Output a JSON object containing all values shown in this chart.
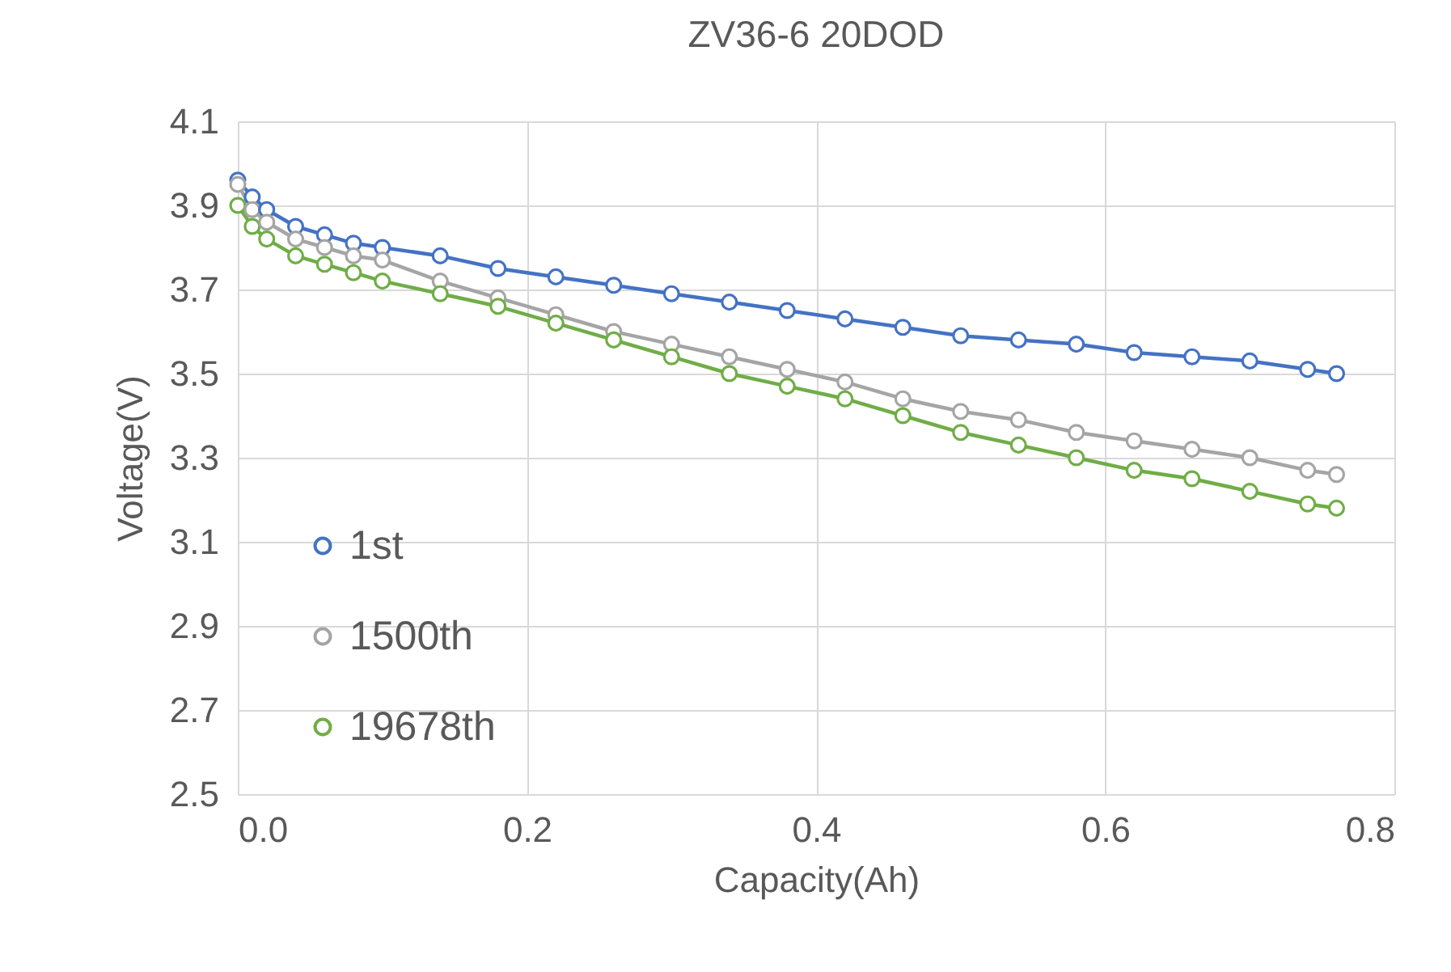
{
  "chart_data": {
    "type": "line",
    "title": "ZV36-6 20DOD",
    "xlabel": "Capacity(Ah)",
    "ylabel": "Voltage(V)",
    "x": [
      0,
      0.01,
      0.02,
      0.04,
      0.06,
      0.08,
      0.1,
      0.14,
      0.18,
      0.22,
      0.26,
      0.3,
      0.34,
      0.38,
      0.42,
      0.46,
      0.5,
      0.54,
      0.58,
      0.62,
      0.66,
      0.7,
      0.74,
      0.76
    ],
    "series": [
      {
        "name": "1st",
        "color": "#4472c4",
        "values": [
          3.96,
          3.92,
          3.89,
          3.85,
          3.83,
          3.81,
          3.8,
          3.78,
          3.75,
          3.73,
          3.71,
          3.69,
          3.67,
          3.65,
          3.63,
          3.61,
          3.59,
          3.58,
          3.57,
          3.55,
          3.54,
          3.53,
          3.51,
          3.5
        ]
      },
      {
        "name": "1500th",
        "color": "#a5a5a5",
        "values": [
          3.95,
          3.89,
          3.86,
          3.82,
          3.8,
          3.78,
          3.77,
          3.72,
          3.68,
          3.64,
          3.6,
          3.57,
          3.54,
          3.51,
          3.48,
          3.44,
          3.41,
          3.39,
          3.36,
          3.34,
          3.32,
          3.3,
          3.27,
          3.26
        ]
      },
      {
        "name": "19678th",
        "color": "#70ad47",
        "values": [
          3.9,
          3.85,
          3.82,
          3.78,
          3.76,
          3.74,
          3.72,
          3.69,
          3.66,
          3.62,
          3.58,
          3.54,
          3.5,
          3.47,
          3.44,
          3.4,
          3.36,
          3.33,
          3.3,
          3.27,
          3.25,
          3.22,
          3.19,
          3.18
        ]
      }
    ],
    "xlim": [
      0,
      0.8
    ],
    "xticks": [
      {
        "value": 0,
        "label": "0.0"
      },
      0.2,
      0.4,
      0.6,
      0.8
    ],
    "ylim": [
      2.5,
      4.1
    ],
    "yticks": [
      2.5,
      2.7,
      2.9,
      3.1,
      3.3,
      3.5,
      3.7,
      3.9,
      4.1
    ],
    "grid": true,
    "legend": "bottom left",
    "marker": "circle",
    "line_style": "solid"
  }
}
